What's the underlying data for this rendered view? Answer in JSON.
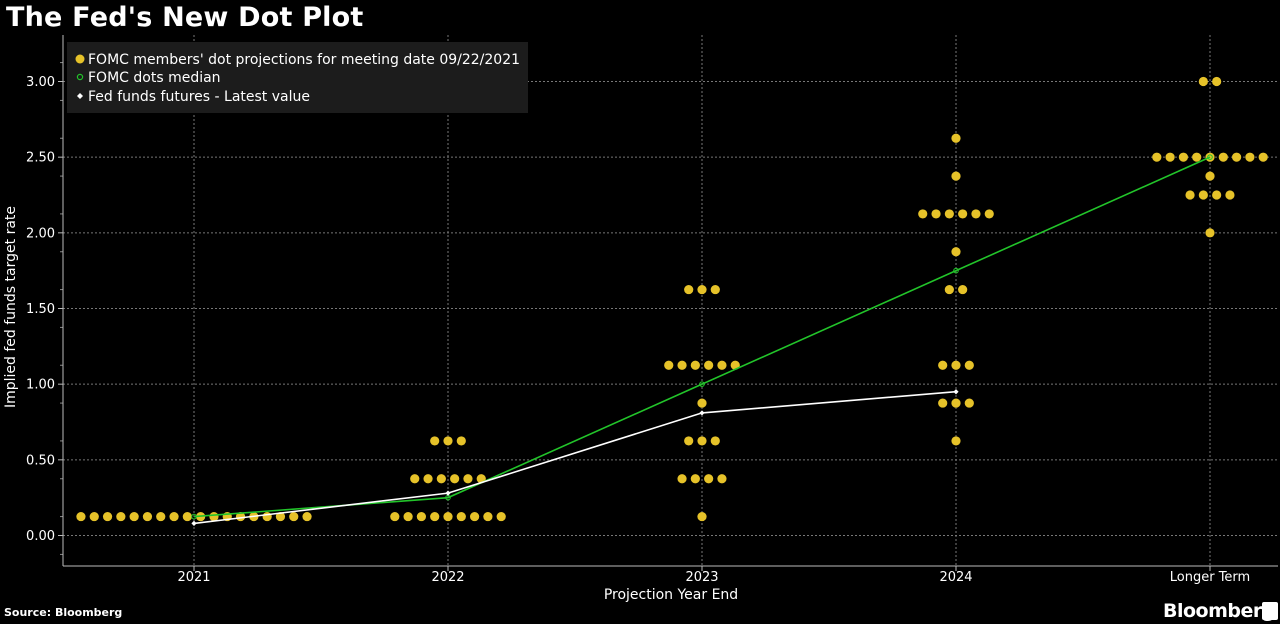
{
  "title": "The Fed's New Dot Plot",
  "footer": {
    "source": "Source: Bloomberg",
    "brand": "Bloomberg"
  },
  "chart_data": {
    "type": "scatter",
    "ylabel": "Implied fed funds target rate",
    "xlabel": "Projection Year End",
    "categories": [
      "2021",
      "2022",
      "2023",
      "2024",
      "Longer Term"
    ],
    "ylim": [
      -0.2,
      3.3
    ],
    "yticks": [
      "0.00",
      "0.50",
      "1.00",
      "1.50",
      "2.00",
      "2.50",
      "3.00"
    ],
    "grid": true,
    "legend_placement": "top-left",
    "colors": {
      "dots": "#e6c229",
      "median": "#22c42a",
      "futures": "#ffffff",
      "grid": "#777777",
      "legend_bg": "#1c1c1c"
    },
    "series": [
      {
        "name": "FOMC members' dot projections for meeting date 09/22/2021",
        "kind": "dots",
        "groups": [
          {
            "category": "2021",
            "levels": [
              {
                "rate": 0.125,
                "count": 18
              }
            ]
          },
          {
            "category": "2022",
            "levels": [
              {
                "rate": 0.125,
                "count": 9
              },
              {
                "rate": 0.375,
                "count": 6
              },
              {
                "rate": 0.625,
                "count": 3
              }
            ]
          },
          {
            "category": "2023",
            "levels": [
              {
                "rate": 0.125,
                "count": 1
              },
              {
                "rate": 0.375,
                "count": 4
              },
              {
                "rate": 0.625,
                "count": 3
              },
              {
                "rate": 0.875,
                "count": 1
              },
              {
                "rate": 1.125,
                "count": 6
              },
              {
                "rate": 1.625,
                "count": 3
              }
            ]
          },
          {
            "category": "2024",
            "levels": [
              {
                "rate": 0.625,
                "count": 1
              },
              {
                "rate": 0.875,
                "count": 3
              },
              {
                "rate": 1.125,
                "count": 3
              },
              {
                "rate": 1.625,
                "count": 2
              },
              {
                "rate": 1.875,
                "count": 1
              },
              {
                "rate": 2.125,
                "count": 6
              },
              {
                "rate": 2.375,
                "count": 1
              },
              {
                "rate": 2.625,
                "count": 1
              }
            ]
          },
          {
            "category": "Longer Term",
            "levels": [
              {
                "rate": 2.0,
                "count": 1
              },
              {
                "rate": 2.25,
                "count": 4
              },
              {
                "rate": 2.375,
                "count": 1
              },
              {
                "rate": 2.5,
                "count": 9
              },
              {
                "rate": 3.0,
                "count": 2
              }
            ]
          }
        ]
      },
      {
        "name": "FOMC dots median",
        "kind": "line",
        "points": [
          {
            "category": "2021",
            "value": 0.125
          },
          {
            "category": "2022",
            "value": 0.25
          },
          {
            "category": "2023",
            "value": 1.0
          },
          {
            "category": "2024",
            "value": 1.75
          },
          {
            "category": "Longer Term",
            "value": 2.5
          }
        ]
      },
      {
        "name": "Fed funds futures - Latest value",
        "kind": "line",
        "points": [
          {
            "category": "2021",
            "value": 0.08
          },
          {
            "category": "2022",
            "value": 0.28
          },
          {
            "category": "2023",
            "value": 0.81
          },
          {
            "category": "2024",
            "value": 0.95
          }
        ]
      }
    ]
  }
}
